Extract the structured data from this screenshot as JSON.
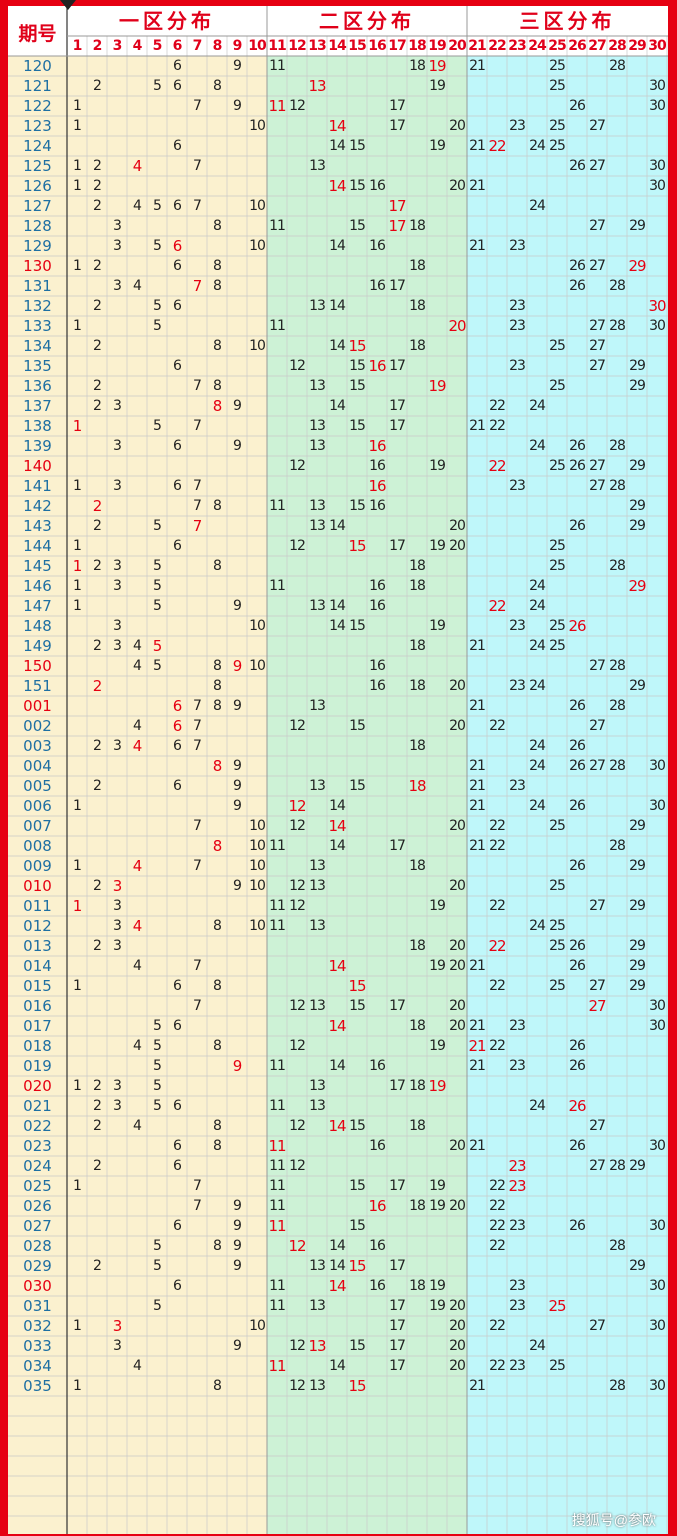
{
  "header": {
    "period_label": "期号",
    "zone_titles": [
      "一区分布",
      "二区分布",
      "三区分布"
    ],
    "column_numbers": [
      "1",
      "2",
      "3",
      "4",
      "5",
      "6",
      "7",
      "8",
      "9",
      "10",
      "11",
      "12",
      "13",
      "14",
      "15",
      "16",
      "17",
      "18",
      "19",
      "20",
      "21",
      "22",
      "23",
      "24",
      "25",
      "26",
      "27",
      "28",
      "29",
      "30"
    ]
  },
  "watermark": "搜狐号@参欧",
  "rows": [
    {
      "p": "120",
      "pr": 0,
      "n": [
        6,
        9,
        11,
        18,
        19,
        21,
        25,
        28
      ],
      "r": [
        19
      ]
    },
    {
      "p": "121",
      "pr": 0,
      "n": [
        2,
        5,
        6,
        8,
        13,
        19,
        25,
        30
      ],
      "r": [
        13
      ]
    },
    {
      "p": "122",
      "pr": 0,
      "n": [
        1,
        7,
        9,
        11,
        12,
        17,
        26,
        30
      ],
      "r": [
        11
      ]
    },
    {
      "p": "123",
      "pr": 0,
      "n": [
        1,
        10,
        14,
        17,
        20,
        23,
        25,
        27
      ],
      "r": [
        14
      ]
    },
    {
      "p": "124",
      "pr": 0,
      "n": [
        6,
        14,
        15,
        19,
        21,
        22,
        24,
        25
      ],
      "r": [
        22
      ]
    },
    {
      "p": "125",
      "pr": 0,
      "n": [
        1,
        2,
        4,
        7,
        13,
        26,
        27,
        30
      ],
      "r": [
        4
      ]
    },
    {
      "p": "126",
      "pr": 0,
      "n": [
        1,
        2,
        14,
        15,
        16,
        20,
        21,
        30
      ],
      "r": [
        14
      ]
    },
    {
      "p": "127",
      "pr": 0,
      "n": [
        2,
        4,
        5,
        6,
        7,
        10,
        17,
        24
      ],
      "r": [
        17
      ]
    },
    {
      "p": "128",
      "pr": 0,
      "n": [
        3,
        8,
        11,
        15,
        17,
        18,
        27,
        29
      ],
      "r": [
        17
      ]
    },
    {
      "p": "129",
      "pr": 0,
      "n": [
        3,
        5,
        6,
        10,
        14,
        16,
        21,
        23
      ],
      "r": [
        6
      ]
    },
    {
      "p": "130",
      "pr": 1,
      "n": [
        1,
        2,
        6,
        8,
        18,
        26,
        27,
        29
      ],
      "r": [
        29
      ]
    },
    {
      "p": "131",
      "pr": 0,
      "n": [
        3,
        4,
        7,
        8,
        16,
        17,
        26,
        28
      ],
      "r": [
        7
      ]
    },
    {
      "p": "132",
      "pr": 0,
      "n": [
        2,
        5,
        6,
        13,
        14,
        18,
        23,
        30
      ],
      "r": [
        30
      ]
    },
    {
      "p": "133",
      "pr": 0,
      "n": [
        1,
        5,
        11,
        20,
        23,
        27,
        28,
        30
      ],
      "r": [
        20
      ]
    },
    {
      "p": "134",
      "pr": 0,
      "n": [
        2,
        8,
        10,
        14,
        15,
        18,
        25,
        27
      ],
      "r": [
        15
      ]
    },
    {
      "p": "135",
      "pr": 0,
      "n": [
        6,
        12,
        15,
        16,
        17,
        23,
        27,
        29
      ],
      "r": [
        16
      ]
    },
    {
      "p": "136",
      "pr": 0,
      "n": [
        2,
        7,
        8,
        13,
        15,
        19,
        25,
        29
      ],
      "r": [
        19
      ]
    },
    {
      "p": "137",
      "pr": 0,
      "n": [
        2,
        3,
        8,
        9,
        14,
        17,
        22,
        24
      ],
      "r": [
        8
      ]
    },
    {
      "p": "138",
      "pr": 0,
      "n": [
        1,
        5,
        7,
        13,
        15,
        17,
        21,
        22
      ],
      "r": [
        1
      ]
    },
    {
      "p": "139",
      "pr": 0,
      "n": [
        3,
        6,
        9,
        13,
        16,
        24,
        26,
        28
      ],
      "r": [
        16
      ]
    },
    {
      "p": "140",
      "pr": 1,
      "n": [
        12,
        16,
        19,
        22,
        25,
        26,
        27,
        29
      ],
      "r": [
        22
      ]
    },
    {
      "p": "141",
      "pr": 0,
      "n": [
        1,
        3,
        6,
        7,
        16,
        23,
        27,
        28
      ],
      "r": [
        16
      ]
    },
    {
      "p": "142",
      "pr": 0,
      "n": [
        2,
        7,
        8,
        11,
        13,
        15,
        16,
        29
      ],
      "r": [
        2
      ]
    },
    {
      "p": "143",
      "pr": 0,
      "n": [
        2,
        5,
        7,
        13,
        14,
        20,
        26,
        29
      ],
      "r": [
        7
      ]
    },
    {
      "p": "144",
      "pr": 0,
      "n": [
        1,
        6,
        12,
        15,
        17,
        19,
        20,
        25
      ],
      "r": [
        15
      ]
    },
    {
      "p": "145",
      "pr": 0,
      "n": [
        1,
        2,
        3,
        5,
        8,
        18,
        25,
        28
      ],
      "r": [
        1
      ]
    },
    {
      "p": "146",
      "pr": 0,
      "n": [
        1,
        3,
        5,
        11,
        16,
        18,
        24,
        29
      ],
      "r": [
        29
      ]
    },
    {
      "p": "147",
      "pr": 0,
      "n": [
        1,
        5,
        9,
        13,
        14,
        16,
        22,
        24
      ],
      "r": [
        22
      ]
    },
    {
      "p": "148",
      "pr": 0,
      "n": [
        3,
        10,
        14,
        15,
        19,
        23,
        25,
        26
      ],
      "r": [
        26
      ]
    },
    {
      "p": "149",
      "pr": 0,
      "n": [
        2,
        3,
        4,
        5,
        18,
        21,
        24,
        25
      ],
      "r": [
        5
      ]
    },
    {
      "p": "150",
      "pr": 1,
      "n": [
        4,
        5,
        8,
        9,
        10,
        16,
        27,
        28
      ],
      "r": [
        9
      ]
    },
    {
      "p": "151",
      "pr": 0,
      "n": [
        2,
        8,
        16,
        18,
        20,
        23,
        24,
        29
      ],
      "r": [
        2
      ]
    },
    {
      "p": "001",
      "pr": 1,
      "n": [
        6,
        7,
        8,
        9,
        13,
        21,
        26,
        28
      ],
      "r": [
        6
      ]
    },
    {
      "p": "002",
      "pr": 0,
      "n": [
        4,
        6,
        7,
        12,
        15,
        20,
        22,
        27
      ],
      "r": [
        6
      ]
    },
    {
      "p": "003",
      "pr": 0,
      "n": [
        2,
        3,
        4,
        6,
        7,
        18,
        24,
        26
      ],
      "r": [
        4
      ]
    },
    {
      "p": "004",
      "pr": 0,
      "n": [
        8,
        9,
        21,
        24,
        26,
        27,
        28,
        30
      ],
      "r": [
        8
      ]
    },
    {
      "p": "005",
      "pr": 0,
      "n": [
        2,
        6,
        9,
        13,
        15,
        18,
        21,
        23
      ],
      "r": [
        18
      ]
    },
    {
      "p": "006",
      "pr": 0,
      "n": [
        1,
        9,
        12,
        14,
        21,
        24,
        26,
        30
      ],
      "r": [
        12
      ]
    },
    {
      "p": "007",
      "pr": 0,
      "n": [
        7,
        10,
        12,
        14,
        20,
        22,
        25,
        29
      ],
      "r": [
        14
      ]
    },
    {
      "p": "008",
      "pr": 0,
      "n": [
        8,
        10,
        11,
        14,
        17,
        21,
        22,
        28
      ],
      "r": [
        8
      ]
    },
    {
      "p": "009",
      "pr": 0,
      "n": [
        1,
        4,
        7,
        10,
        13,
        18,
        26,
        29
      ],
      "r": [
        4
      ]
    },
    {
      "p": "010",
      "pr": 1,
      "n": [
        2,
        3,
        9,
        10,
        12,
        13,
        20,
        25
      ],
      "r": [
        3
      ]
    },
    {
      "p": "011",
      "pr": 0,
      "n": [
        1,
        3,
        11,
        12,
        19,
        22,
        27,
        29
      ],
      "r": [
        1
      ]
    },
    {
      "p": "012",
      "pr": 0,
      "n": [
        3,
        4,
        8,
        10,
        11,
        13,
        24,
        25
      ],
      "r": [
        4
      ]
    },
    {
      "p": "013",
      "pr": 0,
      "n": [
        2,
        3,
        18,
        20,
        22,
        25,
        26,
        29
      ],
      "r": [
        22
      ]
    },
    {
      "p": "014",
      "pr": 0,
      "n": [
        4,
        7,
        14,
        19,
        20,
        21,
        26,
        29
      ],
      "r": [
        14
      ]
    },
    {
      "p": "015",
      "pr": 0,
      "n": [
        1,
        6,
        8,
        15,
        22,
        25,
        27,
        29
      ],
      "r": [
        15
      ]
    },
    {
      "p": "016",
      "pr": 0,
      "n": [
        7,
        12,
        13,
        15,
        17,
        20,
        27,
        30
      ],
      "r": [
        27
      ]
    },
    {
      "p": "017",
      "pr": 0,
      "n": [
        5,
        6,
        14,
        18,
        20,
        21,
        23,
        30
      ],
      "r": [
        14
      ]
    },
    {
      "p": "018",
      "pr": 0,
      "n": [
        4,
        5,
        8,
        12,
        19,
        21,
        22,
        26
      ],
      "r": [
        21
      ]
    },
    {
      "p": "019",
      "pr": 0,
      "n": [
        5,
        9,
        11,
        14,
        16,
        21,
        23,
        26
      ],
      "r": [
        9
      ]
    },
    {
      "p": "020",
      "pr": 1,
      "n": [
        1,
        2,
        3,
        5,
        13,
        17,
        18,
        19
      ],
      "r": [
        19
      ]
    },
    {
      "p": "021",
      "pr": 0,
      "n": [
        2,
        3,
        5,
        6,
        11,
        13,
        24,
        26
      ],
      "r": [
        26
      ]
    },
    {
      "p": "022",
      "pr": 0,
      "n": [
        2,
        4,
        8,
        12,
        14,
        15,
        18,
        27
      ],
      "r": [
        14
      ]
    },
    {
      "p": "023",
      "pr": 0,
      "n": [
        6,
        8,
        11,
        16,
        20,
        21,
        26,
        30
      ],
      "r": [
        11
      ]
    },
    {
      "p": "024",
      "pr": 0,
      "n": [
        2,
        6,
        11,
        12,
        23,
        27,
        28,
        29
      ],
      "r": [
        23
      ]
    },
    {
      "p": "025",
      "pr": 0,
      "n": [
        1,
        7,
        11,
        15,
        17,
        19,
        22,
        23
      ],
      "r": [
        23
      ]
    },
    {
      "p": "026",
      "pr": 0,
      "n": [
        7,
        9,
        11,
        16,
        18,
        19,
        20,
        22
      ],
      "r": [
        16
      ]
    },
    {
      "p": "027",
      "pr": 0,
      "n": [
        6,
        9,
        11,
        15,
        22,
        23,
        26,
        30
      ],
      "r": [
        11
      ]
    },
    {
      "p": "028",
      "pr": 0,
      "n": [
        5,
        8,
        9,
        12,
        14,
        16,
        22,
        28
      ],
      "r": [
        12
      ]
    },
    {
      "p": "029",
      "pr": 0,
      "n": [
        2,
        5,
        9,
        13,
        14,
        15,
        17,
        29
      ],
      "r": [
        15
      ]
    },
    {
      "p": "030",
      "pr": 1,
      "n": [
        6,
        11,
        14,
        16,
        18,
        19,
        23,
        30
      ],
      "r": [
        14
      ]
    },
    {
      "p": "031",
      "pr": 0,
      "n": [
        5,
        11,
        13,
        17,
        19,
        20,
        23,
        25
      ],
      "r": [
        25
      ]
    },
    {
      "p": "032",
      "pr": 0,
      "n": [
        1,
        3,
        10,
        17,
        20,
        22,
        27,
        30
      ],
      "r": [
        3
      ]
    },
    {
      "p": "033",
      "pr": 0,
      "n": [
        3,
        9,
        12,
        13,
        15,
        17,
        20,
        24
      ],
      "r": [
        13
      ]
    },
    {
      "p": "034",
      "pr": 0,
      "n": [
        4,
        11,
        14,
        17,
        20,
        22,
        23,
        25
      ],
      "r": [
        11
      ]
    },
    {
      "p": "035",
      "pr": 0,
      "n": [
        1,
        8,
        12,
        13,
        15,
        21,
        28,
        30
      ],
      "r": [
        15
      ]
    }
  ]
}
